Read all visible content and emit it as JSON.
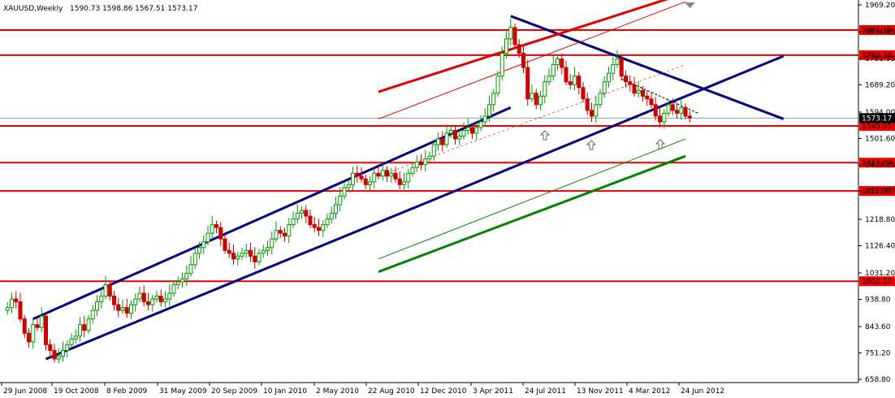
{
  "header": {
    "symbol": "XAUUSD,Weekly",
    "ohlc": "1590.73 1598.86 1567.51 1573.17"
  },
  "chart_data": {
    "type": "candlestick",
    "symbol": "XAUUSD",
    "timeframe": "Weekly",
    "x_labels": [
      "29 Jun 2008",
      "19 Oct 2008",
      "8 Feb 2009",
      "31 May 2009",
      "20 Sep 2009",
      "10 Jan 2010",
      "2 May 2010",
      "22 Aug 2010",
      "12 Dec 2010",
      "3 Apr 2011",
      "24 Jul 2011",
      "13 Nov 2011",
      "4 Mar 2012",
      "24 Jun 2012"
    ],
    "y_ticks": [
      "1969.20",
      "1874.85",
      "1781.55",
      "1689.20",
      "1594.00",
      "1501.60",
      "1409.25",
      "1317.97",
      "1218.80",
      "1126.40",
      "1031.20",
      "938.80",
      "843.60",
      "751.20",
      "658.80"
    ],
    "ylim": [
      658.8,
      1969.2
    ],
    "current_price": "1573.17",
    "horizontal_levels": [
      "1881.15",
      "1793.24",
      "1545.55",
      "1417.04",
      "1317.97",
      "1002.10"
    ],
    "last_close": 1573.17,
    "candle_colors": {
      "up": "#009900",
      "down": "#cc0000"
    },
    "price_path": [
      [
        0,
        900
      ],
      [
        1,
        910
      ],
      [
        2,
        940
      ],
      [
        3,
        930
      ],
      [
        4,
        870
      ],
      [
        5,
        820
      ],
      [
        6,
        790
      ],
      [
        7,
        850
      ],
      [
        8,
        840
      ],
      [
        9,
        880
      ],
      [
        10,
        780
      ],
      [
        11,
        760
      ],
      [
        12,
        730
      ],
      [
        13,
        740
      ],
      [
        14,
        760
      ],
      [
        15,
        780
      ],
      [
        16,
        800
      ],
      [
        17,
        810
      ],
      [
        18,
        850
      ],
      [
        19,
        830
      ],
      [
        20,
        870
      ],
      [
        21,
        900
      ],
      [
        22,
        930
      ],
      [
        23,
        950
      ],
      [
        24,
        990
      ],
      [
        25,
        950
      ],
      [
        26,
        920
      ],
      [
        27,
        900
      ],
      [
        28,
        910
      ],
      [
        29,
        890
      ],
      [
        30,
        920
      ],
      [
        31,
        940
      ],
      [
        32,
        960
      ],
      [
        33,
        930
      ],
      [
        34,
        920
      ],
      [
        35,
        940
      ],
      [
        36,
        950
      ],
      [
        37,
        930
      ],
      [
        38,
        940
      ],
      [
        39,
        960
      ],
      [
        40,
        990
      ],
      [
        41,
        1000
      ],
      [
        42,
        1010
      ],
      [
        43,
        1030
      ],
      [
        44,
        1060
      ],
      [
        45,
        1100
      ],
      [
        46,
        1120
      ],
      [
        47,
        1140
      ],
      [
        48,
        1170
      ],
      [
        49,
        1200
      ],
      [
        50,
        1190
      ],
      [
        51,
        1150
      ],
      [
        52,
        1110
      ],
      [
        53,
        1100
      ],
      [
        54,
        1080
      ],
      [
        55,
        1090
      ],
      [
        56,
        1100
      ],
      [
        57,
        1110
      ],
      [
        58,
        1090
      ],
      [
        59,
        1070
      ],
      [
        60,
        1100
      ],
      [
        61,
        1110
      ],
      [
        62,
        1120
      ],
      [
        63,
        1150
      ],
      [
        64,
        1180
      ],
      [
        65,
        1170
      ],
      [
        66,
        1160
      ],
      [
        67,
        1200
      ],
      [
        68,
        1220
      ],
      [
        69,
        1240
      ],
      [
        70,
        1250
      ],
      [
        71,
        1230
      ],
      [
        72,
        1200
      ],
      [
        73,
        1190
      ],
      [
        74,
        1180
      ],
      [
        75,
        1200
      ],
      [
        76,
        1220
      ],
      [
        77,
        1240
      ],
      [
        78,
        1270
      ],
      [
        79,
        1300
      ],
      [
        80,
        1330
      ],
      [
        81,
        1340
      ],
      [
        82,
        1380
      ],
      [
        83,
        1370
      ],
      [
        84,
        1360
      ],
      [
        85,
        1340
      ],
      [
        86,
        1350
      ],
      [
        87,
        1380
      ],
      [
        88,
        1370
      ],
      [
        89,
        1390
      ],
      [
        90,
        1370
      ],
      [
        91,
        1380
      ],
      [
        92,
        1360
      ],
      [
        93,
        1340
      ],
      [
        94,
        1350
      ],
      [
        95,
        1380
      ],
      [
        96,
        1400
      ],
      [
        97,
        1420
      ],
      [
        98,
        1410
      ],
      [
        99,
        1430
      ],
      [
        100,
        1440
      ],
      [
        101,
        1480
      ],
      [
        102,
        1500
      ],
      [
        103,
        1480
      ],
      [
        104,
        1520
      ],
      [
        105,
        1530
      ],
      [
        106,
        1500
      ],
      [
        107,
        1510
      ],
      [
        108,
        1530
      ],
      [
        109,
        1540
      ],
      [
        110,
        1520
      ],
      [
        111,
        1540
      ],
      [
        112,
        1560
      ],
      [
        113,
        1580
      ],
      [
        114,
        1620
      ],
      [
        115,
        1660
      ],
      [
        116,
        1720
      ],
      [
        117,
        1800
      ],
      [
        118,
        1850
      ],
      [
        119,
        1890
      ],
      [
        120,
        1830
      ],
      [
        121,
        1800
      ],
      [
        122,
        1750
      ],
      [
        123,
        1640
      ],
      [
        124,
        1660
      ],
      [
        125,
        1620
      ],
      [
        126,
        1650
      ],
      [
        127,
        1700
      ],
      [
        128,
        1720
      ],
      [
        129,
        1760
      ],
      [
        130,
        1780
      ],
      [
        131,
        1750
      ],
      [
        132,
        1700
      ],
      [
        133,
        1690
      ],
      [
        134,
        1720
      ],
      [
        135,
        1680
      ],
      [
        136,
        1640
      ],
      [
        137,
        1600
      ],
      [
        138,
        1580
      ],
      [
        139,
        1620
      ],
      [
        140,
        1660
      ],
      [
        141,
        1700
      ],
      [
        142,
        1730
      ],
      [
        143,
        1760
      ],
      [
        144,
        1780
      ],
      [
        145,
        1720
      ],
      [
        146,
        1700
      ],
      [
        147,
        1690
      ],
      [
        148,
        1660
      ],
      [
        149,
        1670
      ],
      [
        150,
        1650
      ],
      [
        151,
        1640
      ],
      [
        152,
        1620
      ],
      [
        153,
        1580
      ],
      [
        154,
        1560
      ],
      [
        155,
        1590
      ],
      [
        156,
        1620
      ],
      [
        157,
        1600
      ],
      [
        158,
        1590
      ],
      [
        159,
        1610
      ],
      [
        160,
        1580
      ],
      [
        161,
        1573
      ]
    ],
    "trendlines": [
      {
        "name": "blue-channel-upper",
        "color": "#000080",
        "from": [
          7,
          870
        ],
        "to": [
          119,
          1610
        ]
      },
      {
        "name": "blue-channel-lower",
        "color": "#000080",
        "from": [
          10,
          730
        ],
        "to": [
          183,
          1790
        ]
      },
      {
        "name": "blue-descending",
        "color": "#000080",
        "from": [
          119,
          1930
        ],
        "to": [
          183,
          1570
        ]
      },
      {
        "name": "red-channel-thick",
        "color": "#dd0000",
        "from": [
          88,
          1665
        ],
        "to": [
          160,
          2010
        ]
      },
      {
        "name": "red-channel-thin",
        "color": "#dd0000",
        "from": [
          88,
          1570
        ],
        "to": [
          160,
          1980
        ]
      },
      {
        "name": "red-dashed-mid",
        "color": "#dd6666",
        "from": [
          88,
          1370
        ],
        "to": [
          160,
          1760
        ]
      },
      {
        "name": "green-channel-thick",
        "color": "#008000",
        "from": [
          88,
          1035
        ],
        "to": [
          160,
          1440
        ]
      },
      {
        "name": "green-channel-thin",
        "color": "#008000",
        "from": [
          88,
          1080
        ],
        "to": [
          160,
          1500
        ]
      },
      {
        "name": "short-descending",
        "color": "#000000",
        "from": [
          145,
          1710
        ],
        "to": [
          163,
          1590
        ]
      }
    ],
    "annotations": [
      "up-arrow",
      "up-arrow",
      "up-arrow"
    ],
    "grid": false,
    "legend": "none"
  }
}
